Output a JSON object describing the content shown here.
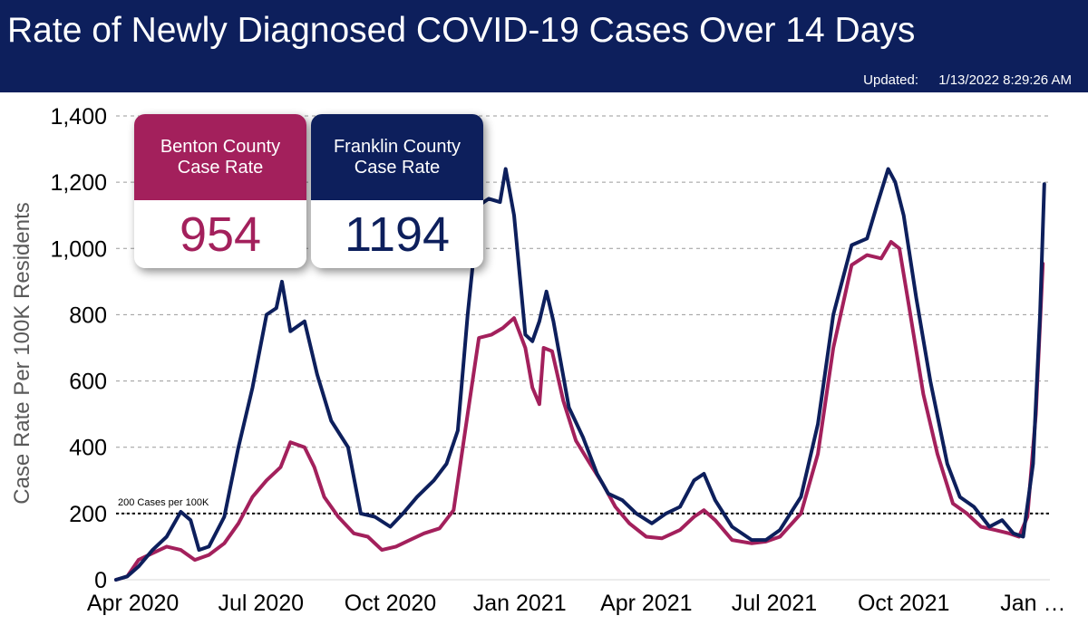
{
  "header": {
    "title": "Rate of Newly Diagnosed COVID-19 Cases Over 14 Days",
    "updated_label": "Updated:",
    "updated_value": "1/13/2022 8:29:26 AM"
  },
  "cards": {
    "benton": {
      "label": "Benton County Case Rate",
      "value": "954",
      "color": "#a3205c"
    },
    "franklin": {
      "label": "Franklin County Case Rate",
      "value": "1194",
      "color": "#0d1f5c"
    }
  },
  "chart_data": {
    "type": "line",
    "ylabel": "Case Rate Per 100K Residents",
    "ylim": [
      0,
      1400
    ],
    "yticks": [
      0,
      200,
      400,
      600,
      800,
      1000,
      1200,
      1400
    ],
    "ytick_labels": [
      "0",
      "200",
      "400",
      "600",
      "800",
      "1,000",
      "1,200",
      "1,400"
    ],
    "xlim": [
      "2020-03-20",
      "2022-01-13"
    ],
    "xticks": [
      "2020-04-01",
      "2020-07-01",
      "2020-10-01",
      "2021-01-01",
      "2021-04-01",
      "2021-07-01",
      "2021-10-01",
      "2022-01-01"
    ],
    "xtick_labels": [
      "Apr 2020",
      "Jul 2020",
      "Oct 2020",
      "Jan 2021",
      "Apr 2021",
      "Jul 2021",
      "Oct 2021",
      "Jan …"
    ],
    "grid": "horizontal dashed",
    "reference_line": {
      "y": 200,
      "label": "200 Cases per 100K"
    },
    "series": [
      {
        "name": "Benton County Case Rate",
        "color": "#a3205c",
        "points": [
          [
            "2020-03-20",
            0
          ],
          [
            "2020-03-28",
            10
          ],
          [
            "2020-04-05",
            60
          ],
          [
            "2020-04-15",
            80
          ],
          [
            "2020-04-25",
            100
          ],
          [
            "2020-05-05",
            90
          ],
          [
            "2020-05-15",
            60
          ],
          [
            "2020-05-25",
            75
          ],
          [
            "2020-06-05",
            110
          ],
          [
            "2020-06-15",
            170
          ],
          [
            "2020-06-25",
            250
          ],
          [
            "2020-07-05",
            300
          ],
          [
            "2020-07-15",
            340
          ],
          [
            "2020-07-22",
            415
          ],
          [
            "2020-08-01",
            400
          ],
          [
            "2020-08-08",
            340
          ],
          [
            "2020-08-15",
            250
          ],
          [
            "2020-08-25",
            190
          ],
          [
            "2020-09-05",
            140
          ],
          [
            "2020-09-15",
            130
          ],
          [
            "2020-09-25",
            90
          ],
          [
            "2020-10-05",
            100
          ],
          [
            "2020-10-15",
            120
          ],
          [
            "2020-10-25",
            140
          ],
          [
            "2020-11-05",
            155
          ],
          [
            "2020-11-15",
            210
          ],
          [
            "2020-11-25",
            500
          ],
          [
            "2020-12-03",
            730
          ],
          [
            "2020-12-12",
            740
          ],
          [
            "2020-12-20",
            760
          ],
          [
            "2020-12-28",
            790
          ],
          [
            "2021-01-05",
            700
          ],
          [
            "2021-01-10",
            580
          ],
          [
            "2021-01-15",
            530
          ],
          [
            "2021-01-18",
            700
          ],
          [
            "2021-01-24",
            690
          ],
          [
            "2021-02-01",
            540
          ],
          [
            "2021-02-10",
            420
          ],
          [
            "2021-02-20",
            350
          ],
          [
            "2021-03-01",
            290
          ],
          [
            "2021-03-10",
            220
          ],
          [
            "2021-03-20",
            170
          ],
          [
            "2021-04-01",
            130
          ],
          [
            "2021-04-12",
            125
          ],
          [
            "2021-04-25",
            150
          ],
          [
            "2021-05-05",
            190
          ],
          [
            "2021-05-12",
            210
          ],
          [
            "2021-05-20",
            180
          ],
          [
            "2021-06-01",
            120
          ],
          [
            "2021-06-15",
            110
          ],
          [
            "2021-06-25",
            115
          ],
          [
            "2021-07-05",
            130
          ],
          [
            "2021-07-20",
            200
          ],
          [
            "2021-08-01",
            380
          ],
          [
            "2021-08-12",
            700
          ],
          [
            "2021-08-25",
            950
          ],
          [
            "2021-09-05",
            980
          ],
          [
            "2021-09-15",
            970
          ],
          [
            "2021-09-22",
            1020
          ],
          [
            "2021-09-28",
            1000
          ],
          [
            "2021-10-05",
            820
          ],
          [
            "2021-10-15",
            560
          ],
          [
            "2021-10-25",
            380
          ],
          [
            "2021-11-05",
            230
          ],
          [
            "2021-11-15",
            200
          ],
          [
            "2021-11-25",
            160
          ],
          [
            "2021-12-05",
            150
          ],
          [
            "2021-12-15",
            140
          ],
          [
            "2021-12-22",
            130
          ],
          [
            "2021-12-28",
            190
          ],
          [
            "2022-01-03",
            500
          ],
          [
            "2022-01-08",
            954
          ]
        ]
      },
      {
        "name": "Franklin County Case Rate",
        "color": "#0d1f5c",
        "points": [
          [
            "2020-03-20",
            0
          ],
          [
            "2020-03-28",
            10
          ],
          [
            "2020-04-05",
            40
          ],
          [
            "2020-04-15",
            90
          ],
          [
            "2020-04-25",
            130
          ],
          [
            "2020-05-05",
            205
          ],
          [
            "2020-05-12",
            180
          ],
          [
            "2020-05-18",
            90
          ],
          [
            "2020-05-25",
            100
          ],
          [
            "2020-06-05",
            190
          ],
          [
            "2020-06-15",
            400
          ],
          [
            "2020-06-25",
            580
          ],
          [
            "2020-07-05",
            800
          ],
          [
            "2020-07-12",
            820
          ],
          [
            "2020-07-16",
            900
          ],
          [
            "2020-07-22",
            750
          ],
          [
            "2020-08-01",
            780
          ],
          [
            "2020-08-10",
            620
          ],
          [
            "2020-08-20",
            480
          ],
          [
            "2020-09-01",
            400
          ],
          [
            "2020-09-10",
            200
          ],
          [
            "2020-09-20",
            190
          ],
          [
            "2020-10-01",
            160
          ],
          [
            "2020-10-10",
            200
          ],
          [
            "2020-10-20",
            250
          ],
          [
            "2020-11-01",
            300
          ],
          [
            "2020-11-10",
            350
          ],
          [
            "2020-11-18",
            450
          ],
          [
            "2020-11-25",
            800
          ],
          [
            "2020-12-03",
            1130
          ],
          [
            "2020-12-10",
            1150
          ],
          [
            "2020-12-18",
            1140
          ],
          [
            "2020-12-22",
            1240
          ],
          [
            "2020-12-28",
            1100
          ],
          [
            "2021-01-05",
            740
          ],
          [
            "2021-01-10",
            720
          ],
          [
            "2021-01-15",
            780
          ],
          [
            "2021-01-20",
            870
          ],
          [
            "2021-01-25",
            780
          ],
          [
            "2021-02-05",
            520
          ],
          [
            "2021-02-15",
            430
          ],
          [
            "2021-02-25",
            320
          ],
          [
            "2021-03-05",
            260
          ],
          [
            "2021-03-15",
            240
          ],
          [
            "2021-03-25",
            200
          ],
          [
            "2021-04-05",
            170
          ],
          [
            "2021-04-15",
            200
          ],
          [
            "2021-04-25",
            220
          ],
          [
            "2021-05-05",
            300
          ],
          [
            "2021-05-12",
            320
          ],
          [
            "2021-05-20",
            240
          ],
          [
            "2021-06-01",
            160
          ],
          [
            "2021-06-15",
            120
          ],
          [
            "2021-06-25",
            120
          ],
          [
            "2021-07-05",
            150
          ],
          [
            "2021-07-20",
            250
          ],
          [
            "2021-08-01",
            470
          ],
          [
            "2021-08-12",
            800
          ],
          [
            "2021-08-25",
            1010
          ],
          [
            "2021-09-05",
            1030
          ],
          [
            "2021-09-12",
            1130
          ],
          [
            "2021-09-20",
            1240
          ],
          [
            "2021-09-25",
            1200
          ],
          [
            "2021-10-01",
            1100
          ],
          [
            "2021-10-10",
            850
          ],
          [
            "2021-10-20",
            600
          ],
          [
            "2021-11-01",
            350
          ],
          [
            "2021-11-10",
            250
          ],
          [
            "2021-11-20",
            220
          ],
          [
            "2021-12-01",
            160
          ],
          [
            "2021-12-10",
            180
          ],
          [
            "2021-12-18",
            140
          ],
          [
            "2021-12-25",
            130
          ],
          [
            "2022-01-01",
            350
          ],
          [
            "2022-01-06",
            800
          ],
          [
            "2022-01-09",
            1194
          ]
        ]
      }
    ]
  }
}
